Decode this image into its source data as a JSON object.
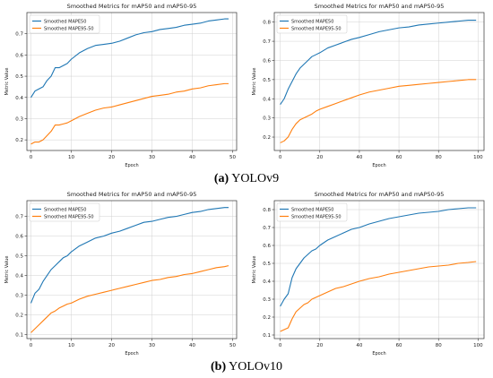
{
  "colors": {
    "series1": "#1f77b4",
    "series2": "#ff7f0e",
    "grid": "#d0d0d0",
    "axis": "#333333"
  },
  "captions": [
    {
      "letter": "(a)",
      "text": "YOLOv9"
    },
    {
      "letter": "(b)",
      "text": "YOLOv10"
    }
  ],
  "chart_data": [
    {
      "type": "line",
      "title": "Smoothed Metrics for mAP50 and mAP50-95",
      "xlabel": "Epoch",
      "ylabel": "Metric Value",
      "xlim": [
        -1,
        51
      ],
      "ylim": [
        0.15,
        0.8
      ],
      "xticks": [
        0,
        10,
        20,
        30,
        40,
        50
      ],
      "yticks": [
        0.2,
        0.3,
        0.4,
        0.5,
        0.6,
        0.7
      ],
      "grid": true,
      "legend": "top-left",
      "series": [
        {
          "name": "Smoothed MAPE50",
          "color": "#1f77b4",
          "x": [
            0,
            1,
            2,
            3,
            4,
            5,
            6,
            7,
            8,
            9,
            10,
            12,
            14,
            16,
            18,
            20,
            22,
            24,
            26,
            28,
            30,
            32,
            34,
            36,
            38,
            40,
            42,
            44,
            46,
            48,
            49
          ],
          "y": [
            0.4,
            0.43,
            0.44,
            0.45,
            0.48,
            0.5,
            0.54,
            0.54,
            0.55,
            0.56,
            0.58,
            0.61,
            0.63,
            0.645,
            0.65,
            0.655,
            0.665,
            0.68,
            0.695,
            0.705,
            0.71,
            0.72,
            0.725,
            0.73,
            0.74,
            0.745,
            0.75,
            0.76,
            0.765,
            0.77,
            0.77
          ]
        },
        {
          "name": "Smoothed MAPE95-50",
          "color": "#ff7f0e",
          "x": [
            0,
            1,
            2,
            3,
            4,
            5,
            6,
            7,
            8,
            9,
            10,
            12,
            14,
            16,
            18,
            20,
            22,
            24,
            26,
            28,
            30,
            32,
            34,
            36,
            38,
            40,
            42,
            44,
            46,
            48,
            49
          ],
          "y": [
            0.18,
            0.19,
            0.19,
            0.2,
            0.22,
            0.24,
            0.27,
            0.27,
            0.275,
            0.28,
            0.29,
            0.31,
            0.325,
            0.34,
            0.35,
            0.355,
            0.365,
            0.375,
            0.385,
            0.395,
            0.405,
            0.41,
            0.415,
            0.425,
            0.43,
            0.44,
            0.445,
            0.455,
            0.46,
            0.465,
            0.465
          ]
        }
      ]
    },
    {
      "type": "line",
      "title": "Smoothed Metrics for mAP50 and mAP50-95",
      "xlabel": "Epoch",
      "ylabel": "Metric Value",
      "xlim": [
        -3,
        103
      ],
      "ylim": [
        0.13,
        0.85
      ],
      "xticks": [
        0,
        20,
        40,
        60,
        80,
        100
      ],
      "yticks": [
        0.2,
        0.3,
        0.4,
        0.5,
        0.6,
        0.7,
        0.8
      ],
      "grid": true,
      "legend": "top-left",
      "series": [
        {
          "name": "Smoothed MAPE50",
          "color": "#1f77b4",
          "x": [
            0,
            2,
            4,
            6,
            8,
            10,
            12,
            14,
            16,
            18,
            20,
            24,
            28,
            32,
            36,
            40,
            45,
            50,
            55,
            60,
            65,
            70,
            75,
            80,
            85,
            90,
            95,
            99
          ],
          "y": [
            0.37,
            0.4,
            0.45,
            0.49,
            0.53,
            0.56,
            0.58,
            0.6,
            0.62,
            0.63,
            0.64,
            0.665,
            0.68,
            0.695,
            0.71,
            0.72,
            0.735,
            0.75,
            0.76,
            0.77,
            0.775,
            0.785,
            0.79,
            0.795,
            0.8,
            0.805,
            0.81,
            0.81
          ]
        },
        {
          "name": "Smoothed MAPE95-50",
          "color": "#ff7f0e",
          "x": [
            0,
            2,
            4,
            6,
            8,
            10,
            12,
            14,
            16,
            18,
            20,
            24,
            28,
            32,
            36,
            40,
            45,
            50,
            55,
            60,
            65,
            70,
            75,
            80,
            85,
            90,
            95,
            99
          ],
          "y": [
            0.17,
            0.18,
            0.2,
            0.24,
            0.27,
            0.29,
            0.3,
            0.31,
            0.32,
            0.335,
            0.345,
            0.36,
            0.375,
            0.39,
            0.405,
            0.42,
            0.435,
            0.445,
            0.455,
            0.465,
            0.47,
            0.475,
            0.48,
            0.485,
            0.49,
            0.495,
            0.5,
            0.5
          ]
        }
      ]
    },
    {
      "type": "line",
      "title": "Smoothed Metrics for mAP50 and mAP50-95",
      "xlabel": "Epoch",
      "ylabel": "Metric Value",
      "xlim": [
        -1,
        51
      ],
      "ylim": [
        0.08,
        0.78
      ],
      "xticks": [
        0,
        10,
        20,
        30,
        40,
        50
      ],
      "yticks": [
        0.1,
        0.2,
        0.3,
        0.4,
        0.5,
        0.6,
        0.7
      ],
      "grid": true,
      "legend": "top-left",
      "series": [
        {
          "name": "Smoothed MAPE50",
          "color": "#1f77b4",
          "x": [
            0,
            1,
            2,
            3,
            4,
            5,
            6,
            7,
            8,
            9,
            10,
            12,
            14,
            16,
            18,
            20,
            22,
            24,
            26,
            28,
            30,
            32,
            34,
            36,
            38,
            40,
            42,
            44,
            46,
            48,
            49
          ],
          "y": [
            0.26,
            0.31,
            0.33,
            0.37,
            0.4,
            0.43,
            0.45,
            0.47,
            0.49,
            0.5,
            0.52,
            0.55,
            0.57,
            0.59,
            0.6,
            0.615,
            0.625,
            0.64,
            0.655,
            0.67,
            0.675,
            0.685,
            0.695,
            0.7,
            0.71,
            0.72,
            0.725,
            0.735,
            0.74,
            0.745,
            0.745
          ]
        },
        {
          "name": "Smoothed MAPE95-50",
          "color": "#ff7f0e",
          "x": [
            0,
            1,
            2,
            3,
            4,
            5,
            6,
            7,
            8,
            9,
            10,
            12,
            14,
            16,
            18,
            20,
            22,
            24,
            26,
            28,
            30,
            32,
            34,
            36,
            38,
            40,
            42,
            44,
            46,
            48,
            49
          ],
          "y": [
            0.11,
            0.13,
            0.15,
            0.17,
            0.19,
            0.21,
            0.22,
            0.235,
            0.245,
            0.255,
            0.26,
            0.28,
            0.295,
            0.305,
            0.315,
            0.325,
            0.335,
            0.345,
            0.355,
            0.365,
            0.375,
            0.38,
            0.39,
            0.395,
            0.405,
            0.41,
            0.42,
            0.43,
            0.44,
            0.445,
            0.45
          ]
        }
      ]
    },
    {
      "type": "line",
      "title": "Smoothed Metrics for mAP50 and mAP50-95",
      "xlabel": "Epoch",
      "ylabel": "Metric Value",
      "xlim": [
        -3,
        103
      ],
      "ylim": [
        0.08,
        0.85
      ],
      "xticks": [
        0,
        20,
        40,
        60,
        80,
        100
      ],
      "yticks": [
        0.1,
        0.2,
        0.3,
        0.4,
        0.5,
        0.6,
        0.7,
        0.8
      ],
      "grid": true,
      "legend": "top-left",
      "series": [
        {
          "name": "Smoothed MAPE50",
          "color": "#1f77b4",
          "x": [
            0,
            2,
            4,
            6,
            8,
            10,
            12,
            14,
            16,
            18,
            20,
            24,
            28,
            32,
            36,
            40,
            45,
            50,
            55,
            60,
            65,
            70,
            75,
            80,
            85,
            90,
            95,
            99
          ],
          "y": [
            0.26,
            0.3,
            0.33,
            0.42,
            0.47,
            0.5,
            0.53,
            0.55,
            0.57,
            0.58,
            0.6,
            0.63,
            0.65,
            0.67,
            0.69,
            0.7,
            0.72,
            0.735,
            0.75,
            0.76,
            0.77,
            0.78,
            0.785,
            0.79,
            0.8,
            0.805,
            0.81,
            0.81
          ]
        },
        {
          "name": "Smoothed MAPE95-50",
          "color": "#ff7f0e",
          "x": [
            0,
            2,
            4,
            6,
            8,
            10,
            12,
            14,
            16,
            18,
            20,
            24,
            28,
            32,
            36,
            40,
            45,
            50,
            55,
            60,
            65,
            70,
            75,
            80,
            85,
            90,
            95,
            99
          ],
          "y": [
            0.12,
            0.13,
            0.14,
            0.19,
            0.23,
            0.25,
            0.27,
            0.28,
            0.3,
            0.31,
            0.32,
            0.34,
            0.36,
            0.37,
            0.385,
            0.4,
            0.415,
            0.425,
            0.44,
            0.45,
            0.46,
            0.47,
            0.48,
            0.485,
            0.49,
            0.5,
            0.505,
            0.51
          ]
        }
      ]
    }
  ]
}
